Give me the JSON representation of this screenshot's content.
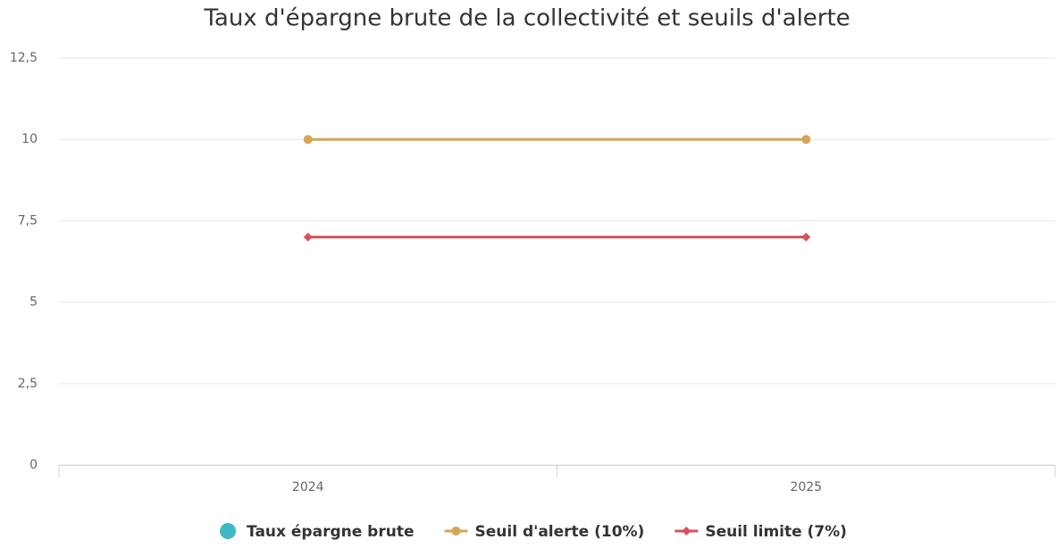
{
  "chart_data": {
    "type": "line",
    "title": "Taux d'épargne brute de la collectivité et seuils d'alerte",
    "categories": [
      "2024",
      "2025"
    ],
    "series": [
      {
        "name": "Taux épargne brute",
        "color": "#3fb8c4",
        "marker": "circle",
        "values": [
          null,
          null
        ]
      },
      {
        "name": "Seuil d'alerte (10%)",
        "color": "#d6a556",
        "marker": "circle",
        "values": [
          10,
          10
        ]
      },
      {
        "name": "Seuil limite (7%)",
        "color": "#d9515b",
        "marker": "diamond",
        "values": [
          7,
          7
        ]
      }
    ],
    "ylim": [
      0,
      12.5
    ],
    "yticks": [
      0,
      {
        "value": 2.5,
        "label": "2,5"
      },
      5,
      {
        "value": 7.5,
        "label": "7,5"
      },
      10,
      {
        "value": 12.5,
        "label": "12,5"
      }
    ],
    "grid": true,
    "legend": "bottom"
  }
}
